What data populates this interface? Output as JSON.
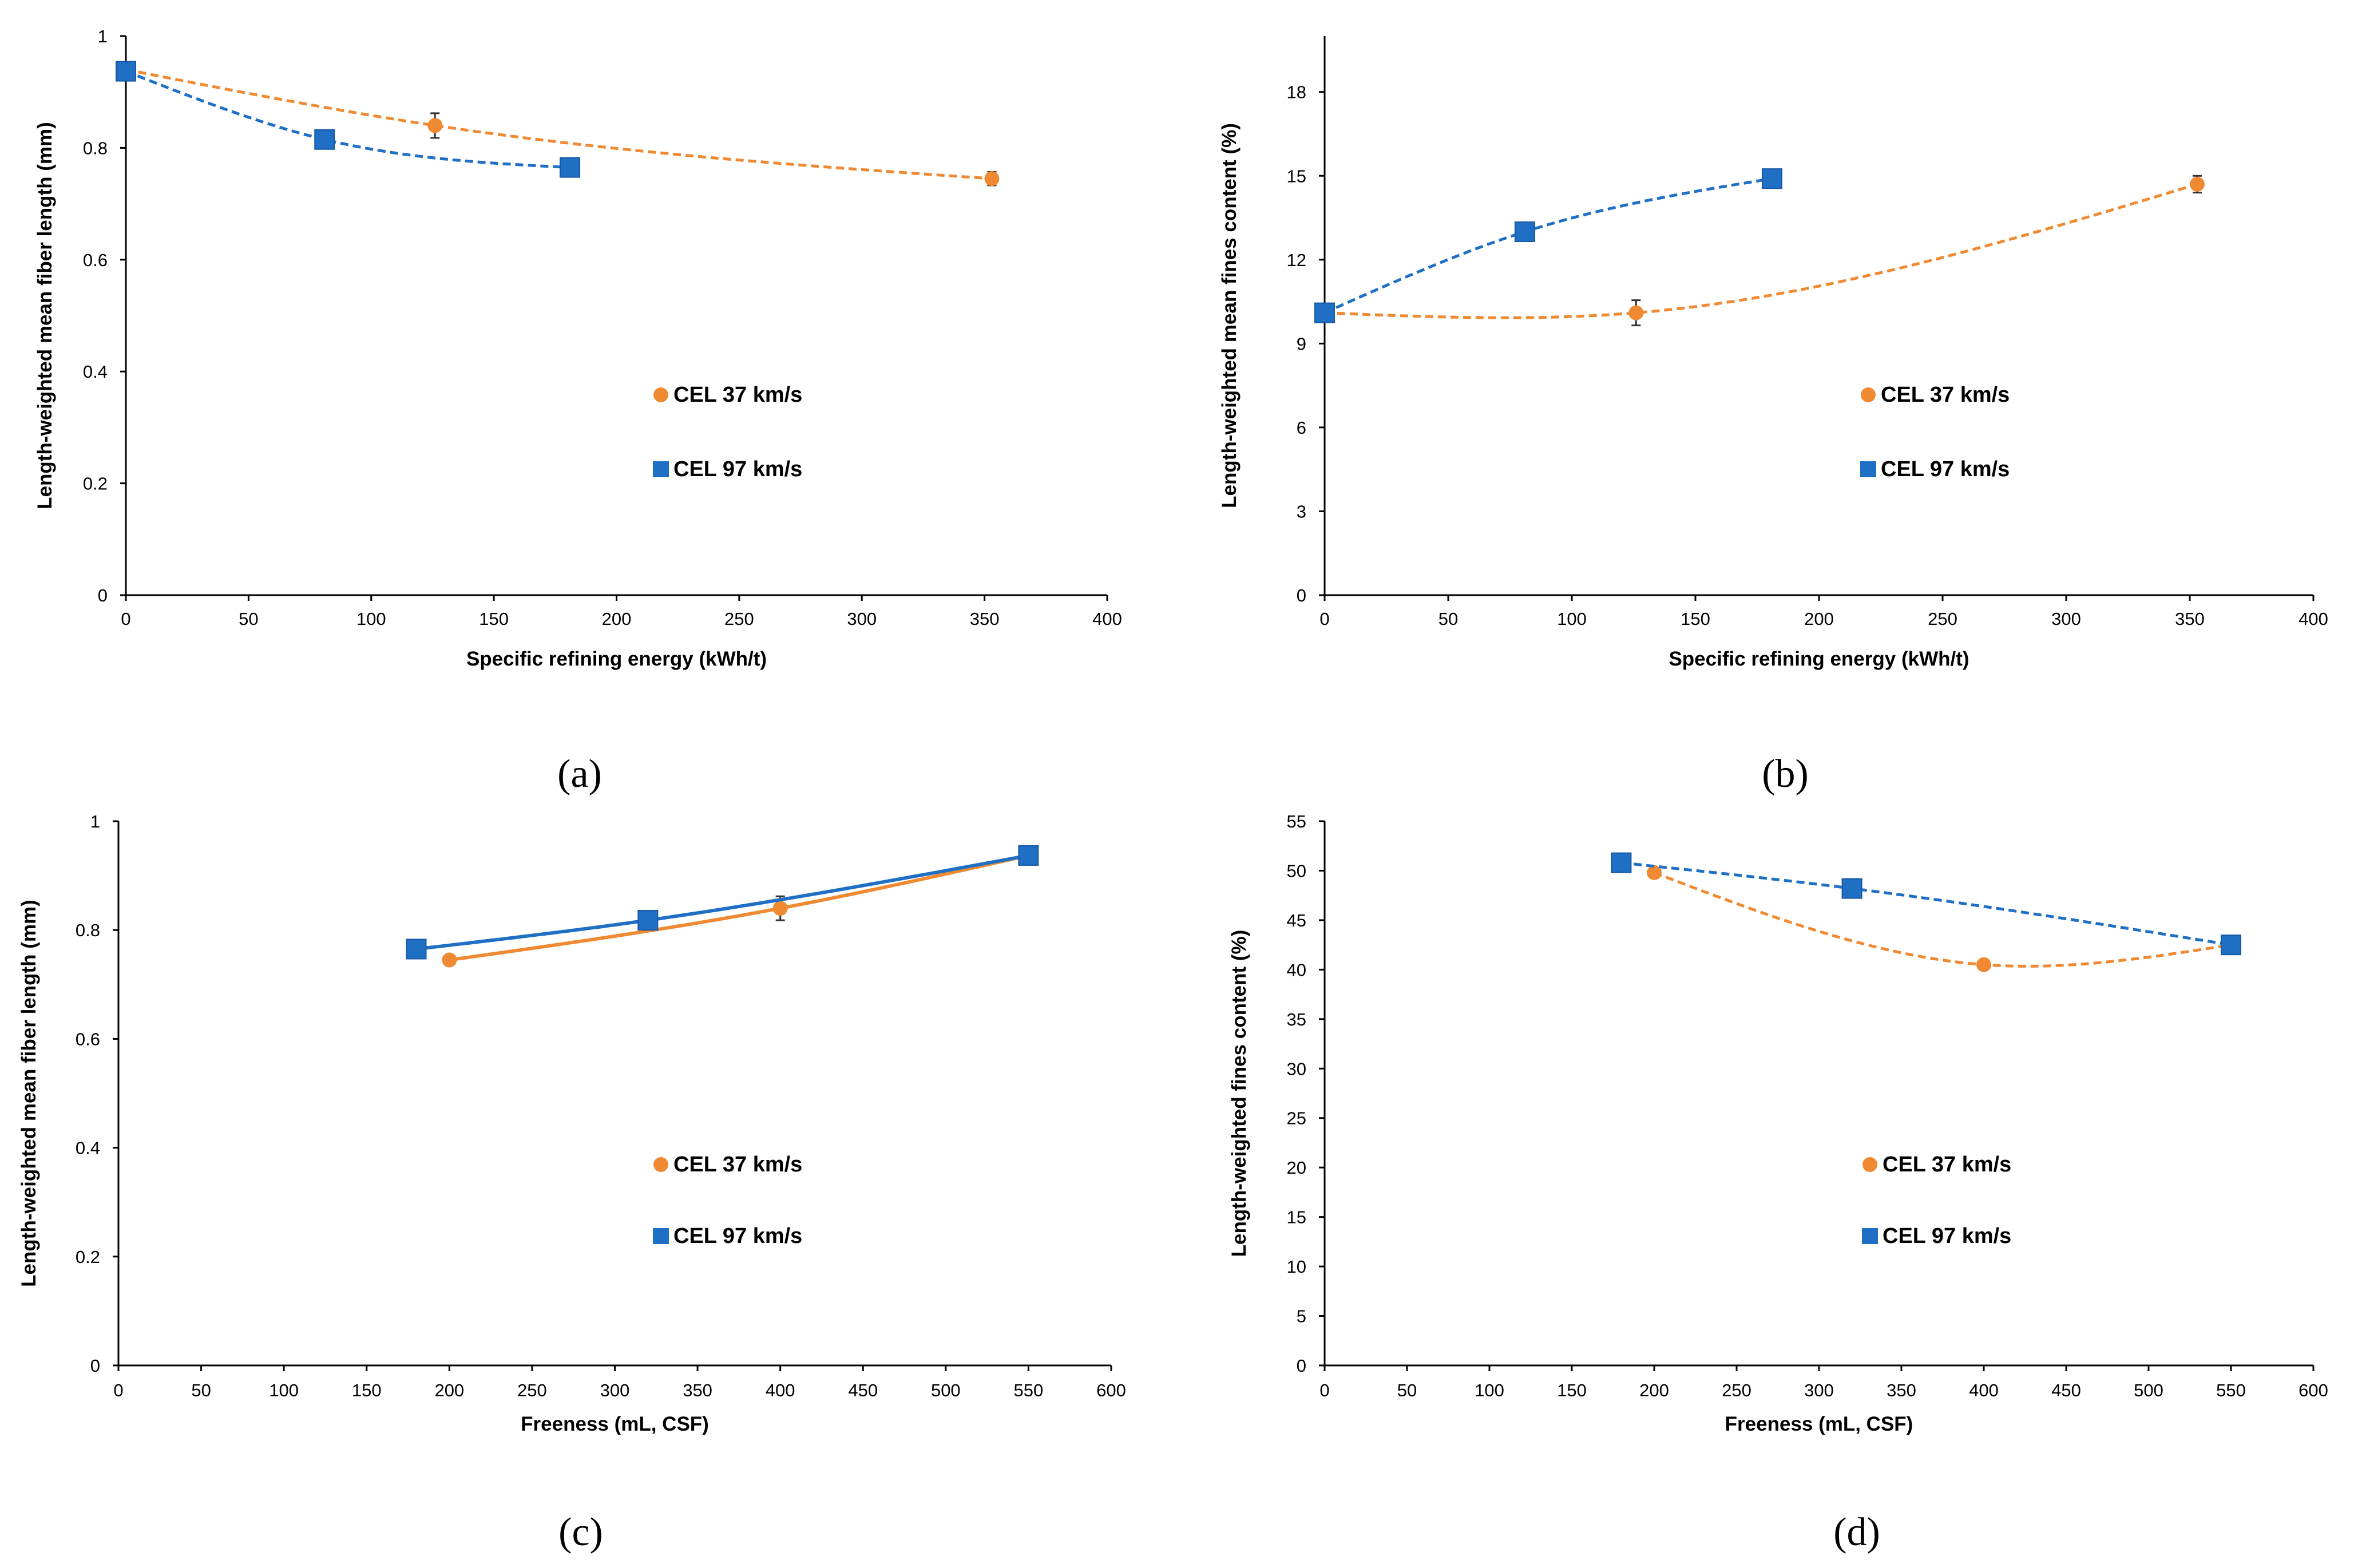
{
  "colors": {
    "orange": "#f08a32",
    "blue": "#1f6fc5",
    "axis": "#000000"
  },
  "chart_data": [
    {
      "panel": "a",
      "type": "scatter",
      "xlabel": "Specific refining energy (kWh/t)",
      "ylabel": "Length-weighted mean fiber length (mm)",
      "xlim": [
        0,
        400
      ],
      "ylim": [
        0,
        1
      ],
      "xticks": [
        "0",
        "50",
        "100",
        "150",
        "200",
        "250",
        "300",
        "350",
        "400"
      ],
      "yticks": [
        "0",
        "0.2",
        "0.4",
        "0.6",
        "0.8",
        "1"
      ],
      "legend": "center",
      "label": "(a)",
      "series": [
        {
          "name": "CEL 37 km/s",
          "marker": "circle",
          "color": "#f08a32",
          "line": "dashed",
          "x": [
            0,
            126,
            353
          ],
          "y": [
            0.94,
            0.84,
            0.745
          ],
          "err": [
            0,
            0.022,
            0.012
          ]
        },
        {
          "name": "CEL 97 km/s",
          "marker": "square",
          "color": "#1f6fc5",
          "line": "dashed",
          "x": [
            0,
            81,
            181
          ],
          "y": [
            0.937,
            0.815,
            0.765
          ],
          "err": [
            0,
            0.012,
            0.015
          ]
        }
      ]
    },
    {
      "panel": "b",
      "type": "scatter",
      "xlabel": "Specific refining energy (kWh/t)",
      "ylabel": "Length-weighted mean fines content (%)",
      "xlim": [
        0,
        400
      ],
      "ylim": [
        0,
        20
      ],
      "xticks": [
        "0",
        "50",
        "100",
        "150",
        "200",
        "250",
        "300",
        "350",
        "400"
      ],
      "yticks": [
        "0",
        "3",
        "6",
        "9",
        "12",
        "15",
        "18"
      ],
      "legend": "center-right",
      "label": "(b)",
      "series": [
        {
          "name": "CEL 37 km/s",
          "marker": "circle",
          "color": "#f08a32",
          "line": "dashed",
          "x": [
            0,
            126,
            353
          ],
          "y": [
            10.1,
            10.1,
            14.7
          ],
          "err": [
            0,
            0.45,
            0.3
          ]
        },
        {
          "name": "CEL 97 km/s",
          "marker": "square",
          "color": "#1f6fc5",
          "line": "dashed",
          "x": [
            0,
            81,
            181
          ],
          "y": [
            10.1,
            13.0,
            14.9
          ],
          "err": [
            0,
            0.15,
            0.2
          ]
        }
      ]
    },
    {
      "panel": "c",
      "type": "scatter",
      "xlabel": "Freeness (mL, CSF)",
      "ylabel": "Length-weighted mean fiber length (mm)",
      "xlim": [
        0,
        600
      ],
      "ylim": [
        0,
        1
      ],
      "xticks": [
        "0",
        "50",
        "100",
        "150",
        "200",
        "250",
        "300",
        "350",
        "400",
        "450",
        "500",
        "550",
        "600"
      ],
      "yticks": [
        "0",
        "0.2",
        "0.4",
        "0.6",
        "0.8",
        "1"
      ],
      "legend": "center",
      "label": "(c)",
      "series": [
        {
          "name": "CEL 37 km/s",
          "marker": "circle",
          "color": "#f08a32",
          "line": "solid",
          "x": [
            200,
            400,
            550
          ],
          "y": [
            0.745,
            0.84,
            0.937
          ],
          "err": [
            0.008,
            0.022,
            0
          ]
        },
        {
          "name": "CEL 97 km/s",
          "marker": "square",
          "color": "#1f6fc5",
          "line": "solid",
          "x": [
            180,
            320,
            550
          ],
          "y": [
            0.765,
            0.818,
            0.937
          ],
          "err": [
            0.01,
            0.01,
            0
          ]
        }
      ]
    },
    {
      "panel": "d",
      "type": "scatter",
      "xlabel": "Freeness (mL, CSF)",
      "ylabel": "Length-weighted fines content (%)",
      "xlim": [
        0,
        600
      ],
      "ylim": [
        0,
        55
      ],
      "xticks": [
        "0",
        "50",
        "100",
        "150",
        "200",
        "250",
        "300",
        "350",
        "400",
        "450",
        "500",
        "550",
        "600"
      ],
      "yticks": [
        "0",
        "5",
        "10",
        "15",
        "20",
        "25",
        "30",
        "35",
        "40",
        "45",
        "50",
        "55"
      ],
      "legend": "center-right",
      "label": "(d)",
      "series": [
        {
          "name": "CEL 37 km/s",
          "marker": "circle",
          "color": "#f08a32",
          "line": "dashed",
          "x": [
            200,
            400,
            550
          ],
          "y": [
            49.8,
            40.5,
            42.5
          ],
          "err": [
            0,
            0,
            0
          ]
        },
        {
          "name": "CEL 97 km/s",
          "marker": "square",
          "color": "#1f6fc5",
          "line": "dashed",
          "x": [
            180,
            320,
            550
          ],
          "y": [
            50.8,
            48.2,
            42.5
          ],
          "err": [
            0,
            0,
            0
          ]
        }
      ]
    }
  ]
}
